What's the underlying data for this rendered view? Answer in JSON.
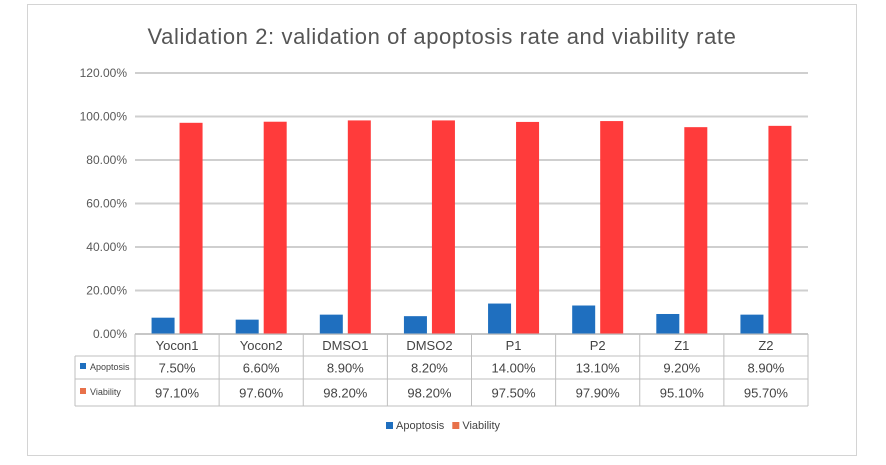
{
  "chart_data": {
    "type": "bar",
    "title": "Validation 2: validation of apoptosis rate and viability rate",
    "categories": [
      "Yocon1",
      "Yocon2",
      "DMSO1",
      "DMSO2",
      "P1",
      "P2",
      "Z1",
      "Z2"
    ],
    "series": [
      {
        "name": "Apoptosis",
        "color": "#1f6fbf",
        "values": [
          7.5,
          6.6,
          8.9,
          8.2,
          14.0,
          13.1,
          9.2,
          8.9
        ],
        "labels": [
          "7.50%",
          "6.60%",
          "8.90%",
          "8.20%",
          "14.00%",
          "13.10%",
          "9.20%",
          "8.90%"
        ],
        "table_icon_color": "#1f6fbf"
      },
      {
        "name": "Viability",
        "color": "#ff3b3b",
        "values": [
          97.1,
          97.6,
          98.2,
          98.2,
          97.5,
          97.9,
          95.1,
          95.7
        ],
        "labels": [
          "97.10%",
          "97.60%",
          "98.20%",
          "98.20%",
          "97.50%",
          "97.90%",
          "95.10%",
          "95.70%"
        ],
        "table_icon_color": "#e8714a"
      }
    ],
    "ylim": [
      0,
      120
    ],
    "yticks": [
      0,
      20,
      40,
      60,
      80,
      100,
      120
    ],
    "ytick_labels": [
      "0.00%",
      "20.00%",
      "40.00%",
      "60.00%",
      "80.00%",
      "100.00%",
      "120.00%"
    ],
    "xlabel": "",
    "ylabel": "",
    "grid": true,
    "legend": {
      "position": "bottom-center",
      "items": [
        "Apoptosis",
        "Viability"
      ]
    },
    "data_table": true
  }
}
